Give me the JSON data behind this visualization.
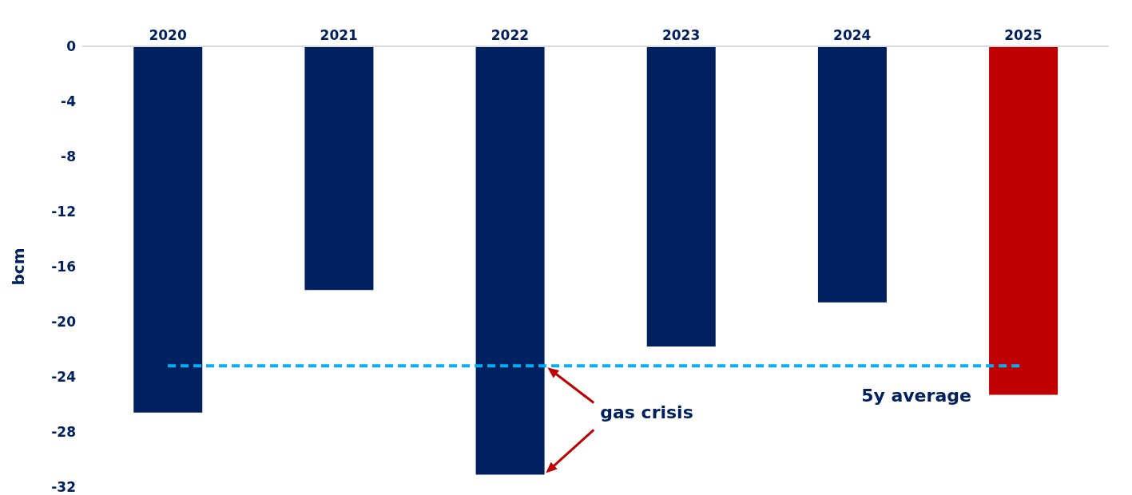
{
  "chart_data": {
    "type": "bar",
    "ylabel": "bcm",
    "categories": [
      "2020",
      "2021",
      "2022",
      "2023",
      "2024",
      "2025"
    ],
    "values": [
      -26.6,
      -17.7,
      -31.1,
      -21.8,
      -18.6,
      -25.3
    ],
    "colors": [
      "#002060",
      "#002060",
      "#002060",
      "#002060",
      "#002060",
      "#c00000"
    ],
    "ylim": [
      -32,
      0
    ],
    "yticks": [
      0,
      -4,
      -8,
      -12,
      -16,
      -20,
      -24,
      -28,
      -32
    ],
    "grid": false,
    "legend": false,
    "ref_lines": [
      {
        "axis": "y",
        "value": -23.2,
        "label": "5y average",
        "color": "#00b0f0",
        "line_style": "dashed"
      }
    ],
    "annotations": [
      "gas crisis"
    ]
  }
}
